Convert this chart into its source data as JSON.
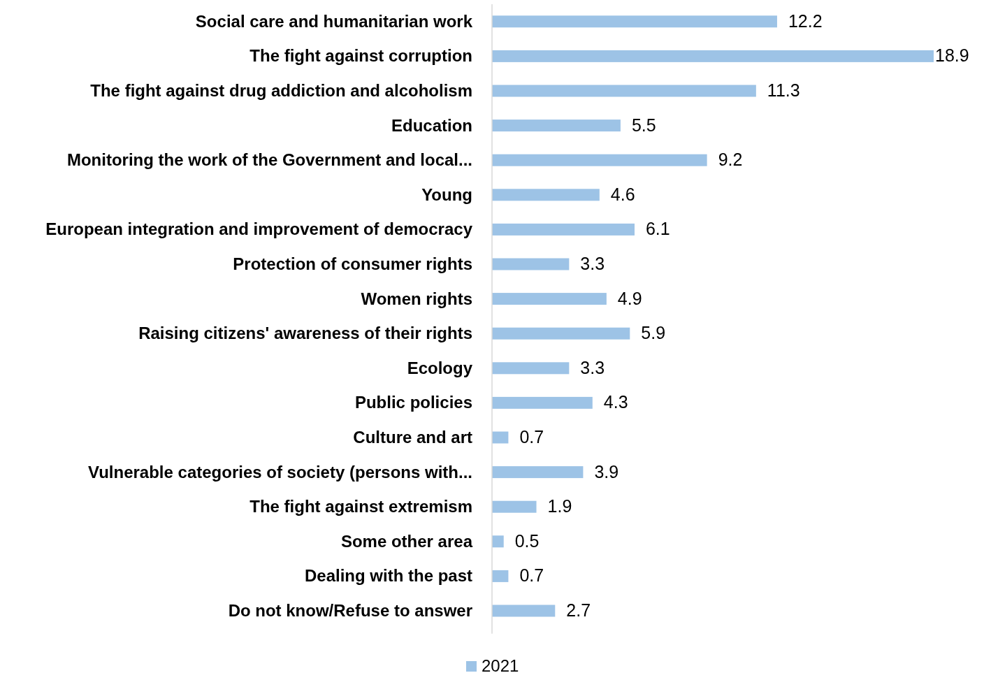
{
  "chart_data": {
    "type": "bar",
    "orientation": "horizontal",
    "categories": [
      "Social care and humanitarian work",
      "The fight against corruption",
      "The fight against drug addiction and alcoholism",
      "Education",
      "Monitoring the work of the Government and local...",
      "Young",
      "European integration and improvement of democracy",
      "Protection of consumer rights",
      "Women rights",
      "Raising citizens' awareness of their rights",
      "Ecology",
      "Public policies",
      "Culture and art",
      "Vulnerable categories of society (persons with...",
      "The fight against extremism",
      "Some other area",
      "Dealing with the past",
      "Do not know/Refuse to answer"
    ],
    "series": [
      {
        "name": "2021",
        "color": "#9dc3e6",
        "values": [
          12.2,
          18.9,
          11.3,
          5.5,
          9.2,
          4.6,
          6.1,
          3.3,
          4.9,
          5.9,
          3.3,
          4.3,
          0.7,
          3.9,
          1.9,
          0.5,
          0.7,
          2.7
        ]
      }
    ],
    "data_labels": true,
    "legend": "bottom"
  }
}
